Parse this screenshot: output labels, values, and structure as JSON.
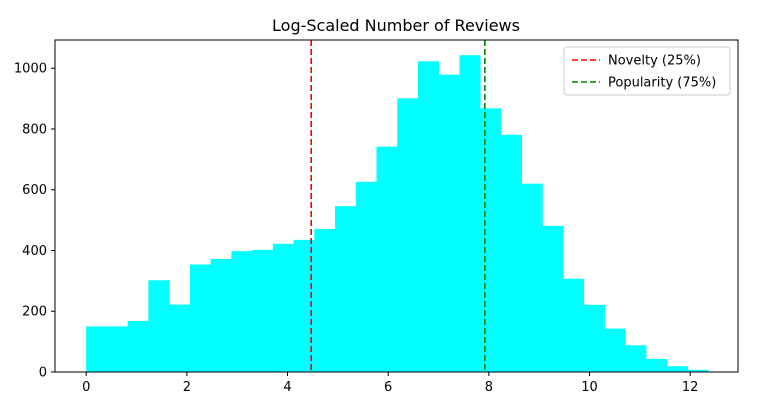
{
  "chart_data": {
    "type": "bar",
    "title": "Log-Scaled Number of Reviews",
    "xlabel": "",
    "ylabel": "",
    "xlim": [
      -0.62,
      12.95
    ],
    "ylim": [
      0,
      1093
    ],
    "xticks": [
      0,
      2,
      4,
      6,
      8,
      10,
      12
    ],
    "yticks": [
      0,
      200,
      400,
      600,
      800,
      1000
    ],
    "bar_color": "#00ffff",
    "bin_width": 0.412,
    "bin_start": 0,
    "values": [
      150,
      150,
      168,
      302,
      222,
      354,
      372,
      398,
      402,
      422,
      435,
      471,
      546,
      626,
      742,
      901,
      1023,
      979,
      1043,
      868,
      781,
      620,
      481,
      307,
      221,
      143,
      88,
      43,
      19,
      7
    ],
    "vlines": [
      {
        "name": "Novelty (25%)",
        "x": 4.47,
        "color": "#ff0000",
        "style": "dashed"
      },
      {
        "name": "Popularity (75%)",
        "x": 7.92,
        "color": "#008000",
        "style": "dashed"
      }
    ],
    "legend_placement": "top-right",
    "grid": false
  }
}
